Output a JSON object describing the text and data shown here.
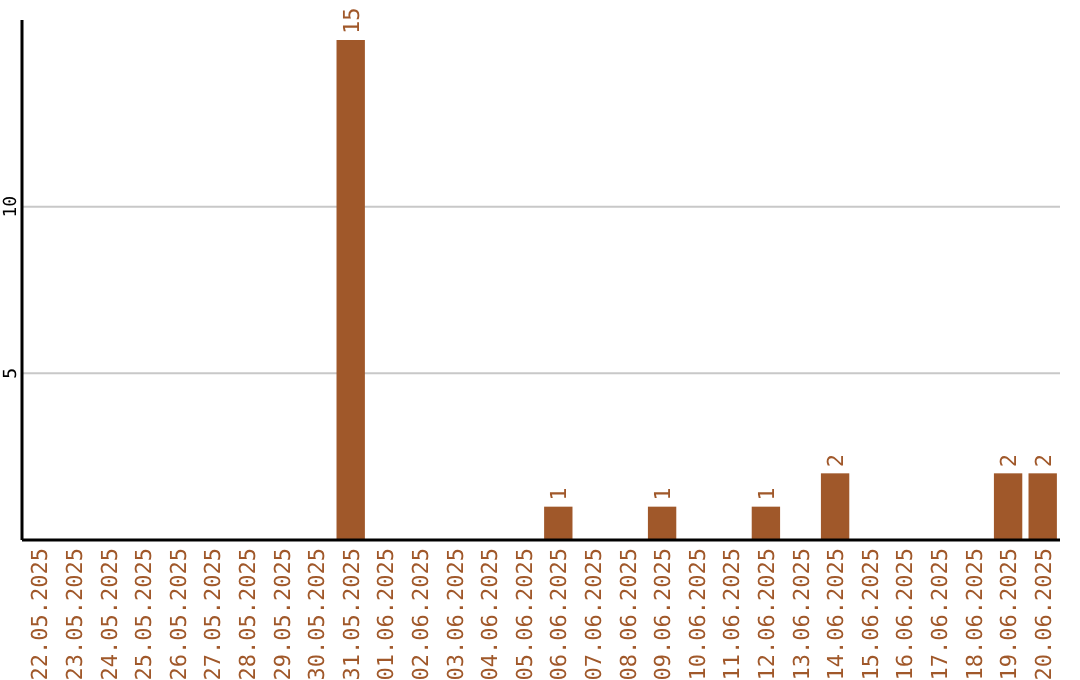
{
  "chart_data": {
    "type": "bar",
    "categories": [
      "22.05.2025",
      "23.05.2025",
      "24.05.2025",
      "25.05.2025",
      "26.05.2025",
      "27.05.2025",
      "28.05.2025",
      "29.05.2025",
      "30.05.2025",
      "31.05.2025",
      "01.06.2025",
      "02.06.2025",
      "03.06.2025",
      "04.06.2025",
      "05.06.2025",
      "06.06.2025",
      "07.06.2025",
      "08.06.2025",
      "09.06.2025",
      "10.06.2025",
      "11.06.2025",
      "12.06.2025",
      "13.06.2025",
      "14.06.2025",
      "15.06.2025",
      "16.06.2025",
      "17.06.2025",
      "18.06.2025",
      "19.06.2025",
      "20.06.2025"
    ],
    "values": [
      0,
      0,
      0,
      0,
      0,
      0,
      0,
      0,
      0,
      15,
      0,
      0,
      0,
      0,
      0,
      1,
      0,
      0,
      1,
      0,
      0,
      1,
      0,
      2,
      0,
      0,
      0,
      0,
      2,
      2
    ],
    "value_labels": [
      null,
      null,
      null,
      null,
      null,
      null,
      null,
      null,
      null,
      "15",
      null,
      null,
      null,
      null,
      null,
      "1",
      null,
      null,
      "1",
      null,
      null,
      "1",
      null,
      "2",
      null,
      null,
      null,
      null,
      "2",
      "2"
    ],
    "color": "#a0582a",
    "ylim": [
      0,
      15.6
    ],
    "yticks": [
      5,
      10
    ],
    "grid": "y"
  }
}
